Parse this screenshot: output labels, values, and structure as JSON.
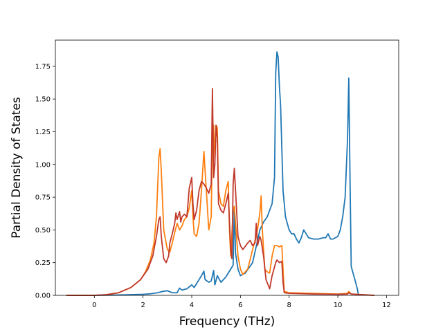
{
  "chart_data": {
    "type": "line",
    "title": "",
    "xlabel": "Frequency (THz)",
    "ylabel": "Partial Density of States",
    "xlim": [
      -1.6,
      12.5
    ],
    "ylim": [
      0,
      1.95
    ],
    "xticks": [
      0,
      2,
      4,
      6,
      8,
      10,
      12
    ],
    "yticks": [
      0.0,
      0.25,
      0.5,
      0.75,
      1.0,
      1.25,
      1.5,
      1.75
    ],
    "xtick_labels": [
      "0",
      "2",
      "4",
      "6",
      "8",
      "10",
      "12"
    ],
    "ytick_labels": [
      "0.00",
      "0.25",
      "0.50",
      "0.75",
      "1.00",
      "1.25",
      "1.50",
      "1.75"
    ],
    "grid": false,
    "legend": "none",
    "series": [
      {
        "color": "#1f77b4",
        "points": [
          [
            -1.15,
            0
          ],
          [
            0,
            0
          ],
          [
            0.8,
            0.002
          ],
          [
            1.5,
            0.005
          ],
          [
            2.0,
            0.008
          ],
          [
            2.3,
            0.012
          ],
          [
            2.6,
            0.02
          ],
          [
            2.8,
            0.03
          ],
          [
            3.0,
            0.035
          ],
          [
            3.2,
            0.02
          ],
          [
            3.4,
            0.02
          ],
          [
            3.5,
            0.055
          ],
          [
            3.6,
            0.04
          ],
          [
            3.8,
            0.05
          ],
          [
            4.0,
            0.08
          ],
          [
            4.1,
            0.06
          ],
          [
            4.2,
            0.09
          ],
          [
            4.3,
            0.12
          ],
          [
            4.4,
            0.15
          ],
          [
            4.5,
            0.185
          ],
          [
            4.55,
            0.12
          ],
          [
            4.7,
            0.1
          ],
          [
            4.8,
            0.11
          ],
          [
            4.9,
            0.19
          ],
          [
            4.95,
            0.08
          ],
          [
            5.05,
            0.15
          ],
          [
            5.2,
            0.1
          ],
          [
            5.4,
            0.14
          ],
          [
            5.6,
            0.2
          ],
          [
            5.7,
            0.23
          ],
          [
            5.75,
            0.68
          ],
          [
            5.8,
            0.32
          ],
          [
            5.9,
            0.2
          ],
          [
            6.0,
            0.15
          ],
          [
            6.2,
            0.17
          ],
          [
            6.5,
            0.25
          ],
          [
            6.8,
            0.5
          ],
          [
            6.95,
            0.56
          ],
          [
            7.1,
            0.6
          ],
          [
            7.3,
            0.7
          ],
          [
            7.4,
            0.9
          ],
          [
            7.45,
            1.7
          ],
          [
            7.5,
            1.86
          ],
          [
            7.55,
            1.82
          ],
          [
            7.6,
            1.6
          ],
          [
            7.65,
            1.45
          ],
          [
            7.75,
            0.8
          ],
          [
            7.85,
            0.6
          ],
          [
            8.0,
            0.5
          ],
          [
            8.1,
            0.47
          ],
          [
            8.2,
            0.47
          ],
          [
            8.3,
            0.43
          ],
          [
            8.4,
            0.4
          ],
          [
            8.5,
            0.44
          ],
          [
            8.6,
            0.5
          ],
          [
            8.7,
            0.47
          ],
          [
            8.8,
            0.44
          ],
          [
            9.0,
            0.43
          ],
          [
            9.2,
            0.43
          ],
          [
            9.4,
            0.44
          ],
          [
            9.5,
            0.44
          ],
          [
            9.6,
            0.47
          ],
          [
            9.7,
            0.43
          ],
          [
            9.8,
            0.43
          ],
          [
            10.0,
            0.45
          ],
          [
            10.1,
            0.5
          ],
          [
            10.2,
            0.6
          ],
          [
            10.3,
            0.75
          ],
          [
            10.4,
            1.2
          ],
          [
            10.45,
            1.66
          ],
          [
            10.5,
            0.9
          ],
          [
            10.55,
            0.22
          ],
          [
            10.7,
            0.12
          ],
          [
            10.8,
            0.05
          ],
          [
            10.85,
            0
          ]
        ]
      },
      {
        "color": "#ff7f0e",
        "points": [
          [
            -1.15,
            0
          ],
          [
            0,
            0
          ],
          [
            0.5,
            0.005
          ],
          [
            1.0,
            0.02
          ],
          [
            1.5,
            0.06
          ],
          [
            1.9,
            0.12
          ],
          [
            2.1,
            0.18
          ],
          [
            2.3,
            0.27
          ],
          [
            2.45,
            0.4
          ],
          [
            2.55,
            0.6
          ],
          [
            2.65,
            1.05
          ],
          [
            2.7,
            1.12
          ],
          [
            2.75,
            0.95
          ],
          [
            2.85,
            0.5
          ],
          [
            3.0,
            0.35
          ],
          [
            3.1,
            0.33
          ],
          [
            3.2,
            0.4
          ],
          [
            3.3,
            0.48
          ],
          [
            3.4,
            0.55
          ],
          [
            3.5,
            0.5
          ],
          [
            3.6,
            0.53
          ],
          [
            3.7,
            0.58
          ],
          [
            3.8,
            0.6
          ],
          [
            3.9,
            0.67
          ],
          [
            4.0,
            0.8
          ],
          [
            4.05,
            0.6
          ],
          [
            4.1,
            0.47
          ],
          [
            4.2,
            0.45
          ],
          [
            4.3,
            0.55
          ],
          [
            4.4,
            0.8
          ],
          [
            4.5,
            1.1
          ],
          [
            4.6,
            0.8
          ],
          [
            4.7,
            0.5
          ],
          [
            4.8,
            0.6
          ],
          [
            4.85,
            1.2
          ],
          [
            4.9,
            1.3
          ],
          [
            4.95,
            1.05
          ],
          [
            5.0,
            1.3
          ],
          [
            5.05,
            1.28
          ],
          [
            5.1,
            0.8
          ],
          [
            5.2,
            0.7
          ],
          [
            5.3,
            0.68
          ],
          [
            5.4,
            0.8
          ],
          [
            5.5,
            0.87
          ],
          [
            5.55,
            0.5
          ],
          [
            5.6,
            0.3
          ],
          [
            5.7,
            0.65
          ],
          [
            5.75,
            0.68
          ],
          [
            5.8,
            0.55
          ],
          [
            5.9,
            0.3
          ],
          [
            6.0,
            0.2
          ],
          [
            6.1,
            0.16
          ],
          [
            6.3,
            0.2
          ],
          [
            6.5,
            0.35
          ],
          [
            6.6,
            0.42
          ],
          [
            6.7,
            0.5
          ],
          [
            6.8,
            0.63
          ],
          [
            6.85,
            0.76
          ],
          [
            6.9,
            0.5
          ],
          [
            7.0,
            0.2
          ],
          [
            7.1,
            0.18
          ],
          [
            7.2,
            0.17
          ],
          [
            7.3,
            0.3
          ],
          [
            7.4,
            0.38
          ],
          [
            7.5,
            0.38
          ],
          [
            7.6,
            0.37
          ],
          [
            7.7,
            0.38
          ],
          [
            7.75,
            0.2
          ],
          [
            7.8,
            0.03
          ],
          [
            8.0,
            0.02
          ],
          [
            9.0,
            0.015
          ],
          [
            10.0,
            0.01
          ],
          [
            10.4,
            0.015
          ],
          [
            10.45,
            0.03
          ],
          [
            10.55,
            0.01
          ],
          [
            11.0,
            0.005
          ],
          [
            11.5,
            0
          ]
        ]
      },
      {
        "color": "#c0392b",
        "points": [
          [
            -1.15,
            0
          ],
          [
            0,
            0
          ],
          [
            0.5,
            0.005
          ],
          [
            1.0,
            0.02
          ],
          [
            1.5,
            0.06
          ],
          [
            1.9,
            0.12
          ],
          [
            2.2,
            0.2
          ],
          [
            2.4,
            0.3
          ],
          [
            2.55,
            0.45
          ],
          [
            2.65,
            0.58
          ],
          [
            2.7,
            0.6
          ],
          [
            2.75,
            0.45
          ],
          [
            2.85,
            0.28
          ],
          [
            2.95,
            0.25
          ],
          [
            3.05,
            0.3
          ],
          [
            3.1,
            0.4
          ],
          [
            3.2,
            0.47
          ],
          [
            3.3,
            0.55
          ],
          [
            3.35,
            0.63
          ],
          [
            3.4,
            0.58
          ],
          [
            3.5,
            0.64
          ],
          [
            3.55,
            0.56
          ],
          [
            3.6,
            0.6
          ],
          [
            3.7,
            0.62
          ],
          [
            3.8,
            0.6
          ],
          [
            3.9,
            0.82
          ],
          [
            4.0,
            0.9
          ],
          [
            4.05,
            0.7
          ],
          [
            4.1,
            0.58
          ],
          [
            4.2,
            0.65
          ],
          [
            4.3,
            0.8
          ],
          [
            4.4,
            0.87
          ],
          [
            4.5,
            0.85
          ],
          [
            4.6,
            0.82
          ],
          [
            4.7,
            0.78
          ],
          [
            4.8,
            0.85
          ],
          [
            4.85,
            1.58
          ],
          [
            4.9,
            0.9
          ],
          [
            4.95,
            1.0
          ],
          [
            5.0,
            1.3
          ],
          [
            5.05,
            1.2
          ],
          [
            5.1,
            0.7
          ],
          [
            5.2,
            0.65
          ],
          [
            5.3,
            0.63
          ],
          [
            5.4,
            0.7
          ],
          [
            5.5,
            0.78
          ],
          [
            5.6,
            0.35
          ],
          [
            5.65,
            0.28
          ],
          [
            5.7,
            0.85
          ],
          [
            5.75,
            0.97
          ],
          [
            5.8,
            0.8
          ],
          [
            5.9,
            0.45
          ],
          [
            6.0,
            0.38
          ],
          [
            6.1,
            0.35
          ],
          [
            6.3,
            0.4
          ],
          [
            6.4,
            0.42
          ],
          [
            6.5,
            0.38
          ],
          [
            6.6,
            0.4
          ],
          [
            6.65,
            0.55
          ],
          [
            6.7,
            0.38
          ],
          [
            6.8,
            0.45
          ],
          [
            6.85,
            0.42
          ],
          [
            6.95,
            0.3
          ],
          [
            7.05,
            0.12
          ],
          [
            7.2,
            0.05
          ],
          [
            7.3,
            0.15
          ],
          [
            7.45,
            0.25
          ],
          [
            7.5,
            0.27
          ],
          [
            7.6,
            0.25
          ],
          [
            7.7,
            0.26
          ],
          [
            7.75,
            0.1
          ],
          [
            7.8,
            0.02
          ],
          [
            8.0,
            0.015
          ],
          [
            9.0,
            0.01
          ],
          [
            10.0,
            0.008
          ],
          [
            10.4,
            0.01
          ],
          [
            10.45,
            0.02
          ],
          [
            10.55,
            0.01
          ],
          [
            11.0,
            0.005
          ],
          [
            11.5,
            0
          ]
        ]
      }
    ]
  }
}
